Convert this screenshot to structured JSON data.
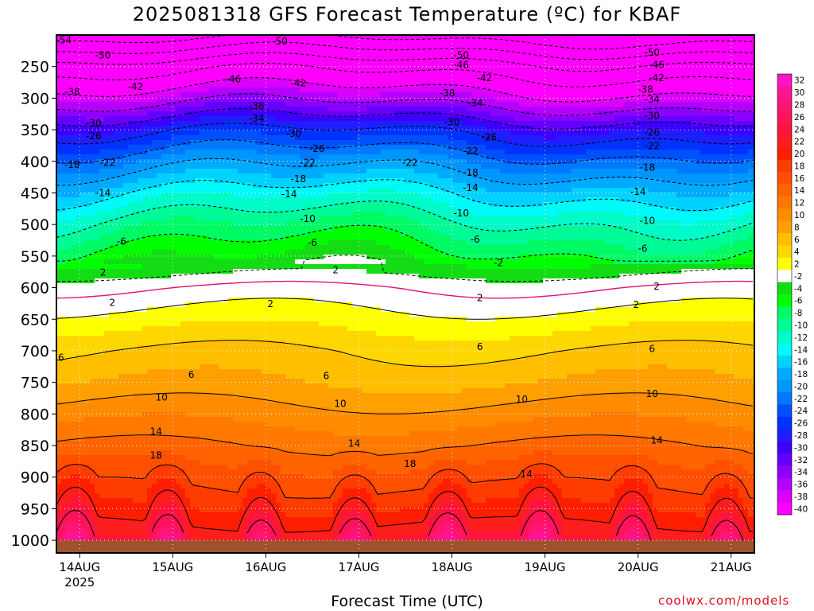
{
  "chart_data": {
    "type": "heatmap",
    "title": "2025081318 GFS Forecast Temperature (ºC) for KBAF",
    "xlabel": "Forecast Time (UTC)",
    "credit": "coolwx.com/models",
    "x_ticks": [
      {
        "label": "14AUG",
        "sub": "2025",
        "day": 0
      },
      {
        "label": "15AUG",
        "sub": "",
        "day": 1
      },
      {
        "label": "16AUG",
        "sub": "",
        "day": 2
      },
      {
        "label": "17AUG",
        "sub": "",
        "day": 3
      },
      {
        "label": "18AUG",
        "sub": "",
        "day": 4
      },
      {
        "label": "19AUG",
        "sub": "",
        "day": 5
      },
      {
        "label": "20AUG",
        "sub": "",
        "day": 6
      },
      {
        "label": "21AUG",
        "sub": "",
        "day": 7
      }
    ],
    "x_range_days": [
      -0.25,
      7.25
    ],
    "y_axis": {
      "unit": "hPa",
      "range": [
        200,
        1020
      ],
      "ticks": [
        250,
        300,
        350,
        400,
        450,
        500,
        550,
        600,
        650,
        700,
        750,
        800,
        850,
        900,
        950,
        1000
      ]
    },
    "colorbar": {
      "labels": [
        "32",
        "30",
        "28",
        "26",
        "24",
        "22",
        "20",
        "18",
        "16",
        "14",
        "12",
        "10",
        "8",
        "6",
        "4",
        "2",
        "-2",
        "-4",
        "-6",
        "-8",
        "-10",
        "-12",
        "-14",
        "-16",
        "-18",
        "-20",
        "-22",
        "-24",
        "-26",
        "-28",
        "-30",
        "-32",
        "-34",
        "-36",
        "-38",
        "-40"
      ],
      "colors": [
        "#ff14c8",
        "#ff1496",
        "#ff1478",
        "#ff145a",
        "#ff1440",
        "#ff1e1e",
        "#ff1e00",
        "#ff3c00",
        "#ff5000",
        "#ff6400",
        "#ff7800",
        "#ff8c00",
        "#ffa000",
        "#ffbe00",
        "#ffd700",
        "#ffff00",
        "#ffffff",
        "#14dc14",
        "#00ff00",
        "#00fa64",
        "#00fa96",
        "#00fac8",
        "#00fafa",
        "#00d2ff",
        "#00aaff",
        "#0096ff",
        "#0078ff",
        "#0050ff",
        "#0032ff",
        "#1e1eff",
        "#3c00ff",
        "#6400ff",
        "#8c00ff",
        "#b400ff",
        "#dc00ff",
        "#ff00ff"
      ]
    },
    "temperature_profile_by_pressure": [
      {
        "p": 200,
        "t": -56
      },
      {
        "p": 250,
        "t": -44
      },
      {
        "p": 300,
        "t": -36
      },
      {
        "p": 350,
        "t": -27
      },
      {
        "p": 400,
        "t": -20
      },
      {
        "p": 450,
        "t": -14
      },
      {
        "p": 500,
        "t": -9
      },
      {
        "p": 550,
        "t": -5
      },
      {
        "p": 600,
        "t": 0
      },
      {
        "p": 650,
        "t": 3
      },
      {
        "p": 700,
        "t": 6
      },
      {
        "p": 750,
        "t": 8
      },
      {
        "p": 800,
        "t": 11
      },
      {
        "p": 850,
        "t": 14
      },
      {
        "p": 900,
        "t": 17
      },
      {
        "p": 950,
        "t": 20
      },
      {
        "p": 1000,
        "t": 24
      }
    ],
    "contour_levels": [
      -54,
      -50,
      -46,
      -42,
      -38,
      -34,
      -30,
      -26,
      -22,
      -18,
      -14,
      -10,
      -6,
      -2,
      2,
      6,
      10,
      14,
      18,
      22,
      26
    ],
    "freezing_level_color": "#e0107a",
    "ground_color": "#a0522d",
    "contour_labels": [
      {
        "text": "-54",
        "day": -0.17,
        "p": 208
      },
      {
        "text": "-50",
        "day": 2.15,
        "p": 210
      },
      {
        "text": "-50",
        "day": 0.25,
        "p": 232
      },
      {
        "text": "-50",
        "day": 4.1,
        "p": 232
      },
      {
        "text": "-50",
        "day": 6.15,
        "p": 228
      },
      {
        "text": "-46",
        "day": 4.1,
        "p": 247
      },
      {
        "text": "-46",
        "day": 6.2,
        "p": 247
      },
      {
        "text": "-46",
        "day": 1.65,
        "p": 270
      },
      {
        "text": "-42",
        "day": 0.6,
        "p": 282
      },
      {
        "text": "-42",
        "day": 2.35,
        "p": 276
      },
      {
        "text": "-42",
        "day": 4.35,
        "p": 268
      },
      {
        "text": "-42",
        "day": 6.2,
        "p": 268
      },
      {
        "text": "-38",
        "day": -0.08,
        "p": 290
      },
      {
        "text": "-38",
        "day": 3.95,
        "p": 292
      },
      {
        "text": "-38",
        "day": 6.08,
        "p": 286
      },
      {
        "text": "-38",
        "day": 1.9,
        "p": 312
      },
      {
        "text": "-34",
        "day": 4.25,
        "p": 308
      },
      {
        "text": "-34",
        "day": 6.15,
        "p": 302
      },
      {
        "text": "-34",
        "day": 1.9,
        "p": 332
      },
      {
        "text": "-30",
        "day": 6.15,
        "p": 328
      },
      {
        "text": "-30",
        "day": 0.15,
        "p": 340
      },
      {
        "text": "-30",
        "day": 4.0,
        "p": 338
      },
      {
        "text": "-30",
        "day": 2.3,
        "p": 356
      },
      {
        "text": "-26",
        "day": 6.15,
        "p": 354
      },
      {
        "text": "-26",
        "day": 0.15,
        "p": 360
      },
      {
        "text": "-26",
        "day": 4.4,
        "p": 362
      },
      {
        "text": "-26",
        "day": 2.55,
        "p": 380
      },
      {
        "text": "-22",
        "day": 6.15,
        "p": 376
      },
      {
        "text": "-22",
        "day": 4.2,
        "p": 384
      },
      {
        "text": "-22",
        "day": 0.3,
        "p": 402
      },
      {
        "text": "-22",
        "day": 2.45,
        "p": 402
      },
      {
        "text": "-22",
        "day": 3.55,
        "p": 402
      },
      {
        "text": "-18",
        "day": -0.08,
        "p": 405
      },
      {
        "text": "-18",
        "day": 6.1,
        "p": 410
      },
      {
        "text": "-18",
        "day": 4.2,
        "p": 418
      },
      {
        "text": "-18",
        "day": 2.35,
        "p": 428
      },
      {
        "text": "-14",
        "day": 4.2,
        "p": 442
      },
      {
        "text": "-14",
        "day": 6.0,
        "p": 448
      },
      {
        "text": "-14",
        "day": 0.25,
        "p": 450
      },
      {
        "text": "-14",
        "day": 2.25,
        "p": 452
      },
      {
        "text": "-10",
        "day": 4.1,
        "p": 482
      },
      {
        "text": "-10",
        "day": 2.45,
        "p": 491
      },
      {
        "text": "-10",
        "day": 6.1,
        "p": 494
      },
      {
        "text": "-6",
        "day": 4.25,
        "p": 524
      },
      {
        "text": "-6",
        "day": 0.45,
        "p": 527
      },
      {
        "text": "-6",
        "day": 2.5,
        "p": 529
      },
      {
        "text": "-6",
        "day": 6.05,
        "p": 538
      },
      {
        "text": "-2",
        "day": 4.5,
        "p": 561
      },
      {
        "text": "2",
        "day": 0.25,
        "p": 576
      },
      {
        "text": "2",
        "day": 2.75,
        "p": 572
      },
      {
        "text": "2",
        "day": 6.2,
        "p": 598
      },
      {
        "text": "2",
        "day": 0.35,
        "p": 624
      },
      {
        "text": "2",
        "day": 2.05,
        "p": 626
      },
      {
        "text": "2",
        "day": 4.3,
        "p": 616
      },
      {
        "text": "2",
        "day": 5.98,
        "p": 627
      },
      {
        "text": "6",
        "day": -0.2,
        "p": 711
      },
      {
        "text": "6",
        "day": 1.2,
        "p": 738
      },
      {
        "text": "6",
        "day": 2.65,
        "p": 740
      },
      {
        "text": "6",
        "day": 4.3,
        "p": 694
      },
      {
        "text": "6",
        "day": 6.15,
        "p": 697
      },
      {
        "text": "10",
        "day": 0.88,
        "p": 774
      },
      {
        "text": "10",
        "day": 2.8,
        "p": 784
      },
      {
        "text": "10",
        "day": 4.75,
        "p": 777
      },
      {
        "text": "10",
        "day": 6.15,
        "p": 768
      },
      {
        "text": "14",
        "day": 0.82,
        "p": 828
      },
      {
        "text": "14",
        "day": 2.95,
        "p": 847
      },
      {
        "text": "14",
        "day": 6.2,
        "p": 842
      },
      {
        "text": "14",
        "day": 4.8,
        "p": 895
      },
      {
        "text": "18",
        "day": 0.82,
        "p": 866
      },
      {
        "text": "18",
        "day": 3.55,
        "p": 879
      }
    ]
  }
}
